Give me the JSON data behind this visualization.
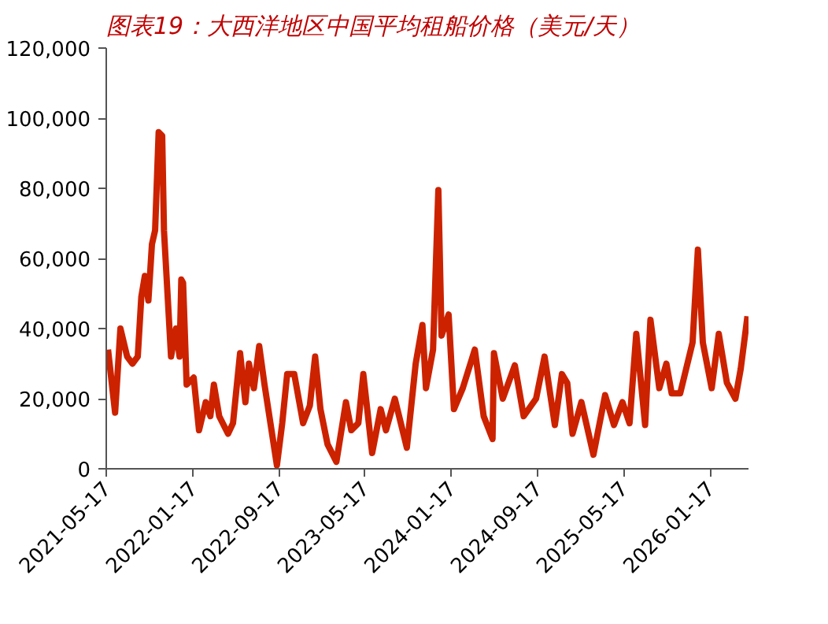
{
  "chart_data": {
    "type": "line",
    "title": "图表19：大西洋地区中国平均租船价格（美元/天）",
    "x": [
      "2021-05-22",
      "2021-06-11",
      "2021-06-26",
      "2021-07-15",
      "2021-07-30",
      "2021-08-14",
      "2021-08-24",
      "2021-09-03",
      "2021-09-13",
      "2021-09-23",
      "2021-10-02",
      "2021-10-12",
      "2021-10-22",
      "2021-10-27",
      "2021-11-16",
      "2021-11-30",
      "2021-12-10",
      "2021-12-15",
      "2021-12-20",
      "2021-12-30",
      "2022-01-19",
      "2022-02-03",
      "2022-02-22",
      "2022-03-07",
      "2022-03-17",
      "2022-04-01",
      "2022-04-26",
      "2022-05-10",
      "2022-05-30",
      "2022-06-14",
      "2022-06-24",
      "2022-07-08",
      "2022-07-23",
      "2022-08-07",
      "2022-09-11",
      "2022-09-26",
      "2022-10-10",
      "2022-10-30",
      "2022-11-24",
      "2022-12-13",
      "2022-12-28",
      "2023-01-12",
      "2023-02-01",
      "2023-02-26",
      "2023-03-25",
      "2023-04-09",
      "2023-04-29",
      "2023-05-13",
      "2023-06-07",
      "2023-07-01",
      "2023-07-16",
      "2023-08-10",
      "2023-09-13",
      "2023-10-08",
      "2023-10-27",
      "2023-11-06",
      "2023-11-26",
      "2023-12-11",
      "2023-12-20",
      "2024-01-09",
      "2024-01-24",
      "2024-02-18",
      "2024-03-23",
      "2024-04-17",
      "2024-05-12",
      "2024-05-16",
      "2024-06-10",
      "2024-07-14",
      "2024-08-08",
      "2024-09-12",
      "2024-10-06",
      "2024-11-04",
      "2024-11-24",
      "2024-12-09",
      "2024-12-24",
      "2025-01-18",
      "2025-02-21",
      "2025-03-26",
      "2025-04-20",
      "2025-05-14",
      "2025-06-03",
      "2025-06-22",
      "2025-07-17",
      "2025-08-01",
      "2025-08-26",
      "2025-09-15",
      "2025-09-30",
      "2025-10-24",
      "2025-11-28",
      "2025-12-13",
      "2025-12-27",
      "2026-01-21",
      "2026-02-10",
      "2026-03-05",
      "2026-03-29",
      "2026-04-13",
      "2026-05-02"
    ],
    "series": [
      {
        "color": "#cc2200",
        "values": [
          34000,
          16000,
          40000,
          32000,
          30000,
          32000,
          49000,
          55000,
          48000,
          64000,
          68000,
          96000,
          95000,
          68000,
          32000,
          40000,
          32000,
          54000,
          53000,
          24000,
          26000,
          11000,
          19000,
          15000,
          24000,
          15000,
          10000,
          13000,
          33000,
          19000,
          30000,
          23000,
          35000,
          24000,
          1000,
          13000,
          27000,
          27000,
          13000,
          18000,
          32000,
          17000,
          7000,
          2000,
          19000,
          11000,
          13000,
          27000,
          4500,
          17000,
          11000,
          20000,
          6000,
          30000,
          41000,
          23000,
          34000,
          79500,
          38000,
          44000,
          17000,
          23000,
          34000,
          15000,
          8500,
          33000,
          20000,
          29500,
          15000,
          20000,
          32000,
          12500,
          27000,
          24500,
          10000,
          19000,
          4000,
          21000,
          12500,
          19000,
          13000,
          38500,
          12500,
          42500,
          23000,
          30000,
          21500,
          21500,
          36000,
          62500,
          36000,
          23000,
          38500,
          24500,
          20000,
          28500,
          43500
        ]
      }
    ],
    "xlim": [
      "2021-05-17",
      "2026-05-05"
    ],
    "xticks": [
      "2021-05-17",
      "2022-01-17",
      "2022-09-17",
      "2023-05-17",
      "2024-01-17",
      "2024-09-17",
      "2025-05-17",
      "2026-01-17"
    ],
    "ylim": [
      0,
      120000
    ],
    "yticks": [
      0,
      {
        "value": 20000,
        "label": "20,000"
      },
      {
        "value": 40000,
        "label": "40,000"
      },
      {
        "value": 60000,
        "label": "60,000"
      },
      {
        "value": 80000,
        "label": "80,000"
      },
      {
        "value": 100000,
        "label": "100,000"
      },
      {
        "value": 120000,
        "label": "120,000"
      }
    ],
    "grid": false,
    "marker": "none",
    "line_style": "solid"
  }
}
